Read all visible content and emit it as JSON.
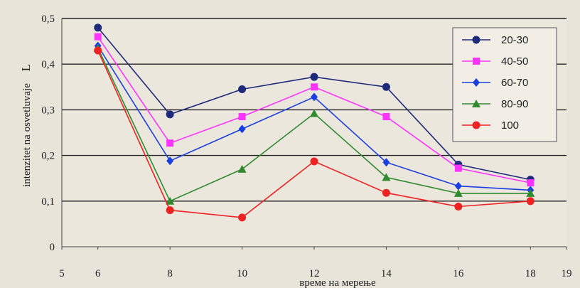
{
  "chart_data": {
    "type": "line",
    "xlabel": "време на мерење",
    "ylabel": "intenzitet na osvetluvaje",
    "ylabel_symbol": "L",
    "xlim": [
      5,
      19
    ],
    "ylim": [
      0,
      0.5
    ],
    "x_ticks": [
      "5",
      "6",
      "8",
      "10",
      "12",
      "14",
      "16",
      "18",
      "19"
    ],
    "y_ticks": [
      "0",
      "0,1",
      "0,2",
      "0,3",
      "0,4",
      "0,5"
    ],
    "grid": "horizontal",
    "legend_position": "top-right",
    "x": [
      6,
      8,
      10,
      12,
      14,
      16,
      18
    ],
    "series": [
      {
        "name": "20-30",
        "color": "#1f2a7a",
        "marker": "circle",
        "values": [
          0.48,
          0.29,
          0.345,
          0.372,
          0.35,
          0.18,
          0.147
        ]
      },
      {
        "name": "40-50",
        "color": "#ff33ff",
        "marker": "square",
        "values": [
          0.46,
          0.227,
          0.285,
          0.35,
          0.285,
          0.172,
          0.14
        ]
      },
      {
        "name": "60-70",
        "color": "#1a3fe0",
        "marker": "diamond",
        "values": [
          0.44,
          0.188,
          0.258,
          0.328,
          0.185,
          0.133,
          0.124
        ]
      },
      {
        "name": "80-90",
        "color": "#2e8b2e",
        "marker": "triangle",
        "values": [
          0.435,
          0.1,
          0.17,
          0.292,
          0.152,
          0.117,
          0.117
        ]
      },
      {
        "name": "100",
        "color": "#ee2222",
        "marker": "circle",
        "values": [
          0.43,
          0.08,
          0.064,
          0.187,
          0.118,
          0.088,
          0.1
        ]
      }
    ]
  }
}
